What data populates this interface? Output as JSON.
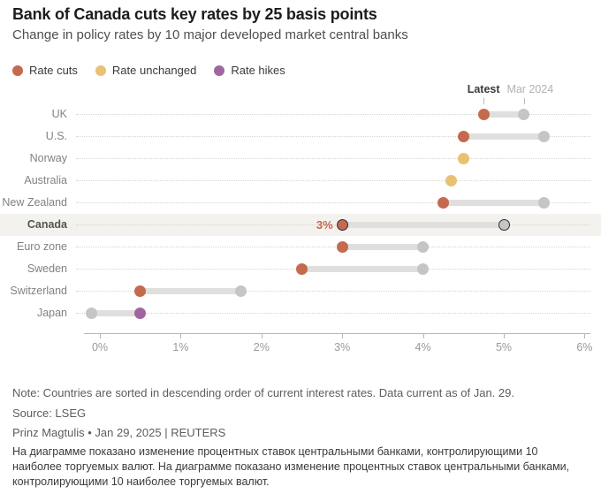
{
  "header": {
    "title": "Bank of Canada cuts key rates by 25 basis points",
    "subtitle": "Change in policy rates by 10 major developed market central banks"
  },
  "legend": {
    "items": [
      {
        "label": "Rate cuts",
        "key": "cut"
      },
      {
        "label": "Rate unchanged",
        "key": "unchanged"
      },
      {
        "label": "Rate hikes",
        "key": "hike"
      }
    ]
  },
  "colors": {
    "cut": "#c46a4e",
    "unchanged": "#e8c272",
    "hike": "#a0679e",
    "previous": "#c7c5c3",
    "bar": "#e1dfdd",
    "highlight_band": "#f4f2ef",
    "accent_label": "#c4694e"
  },
  "chart_data": {
    "type": "scatter",
    "variant": "dumbbell",
    "title": "Bank of Canada cuts key rates by 25 basis points",
    "subtitle": "Change in policy rates by 10 major developed market central banks",
    "unit": "%",
    "categories": [
      "UK",
      "U.S.",
      "Norway",
      "Australia",
      "New Zealand",
      "Canada",
      "Euro zone",
      "Sweden",
      "Switzerland",
      "Japan"
    ],
    "series": [
      {
        "name": "Latest",
        "values": [
          4.75,
          4.5,
          4.5,
          4.35,
          4.25,
          3.0,
          3.0,
          2.5,
          0.5,
          0.5
        ]
      },
      {
        "name": "Mar 2024",
        "values": [
          5.25,
          5.5,
          4.5,
          4.35,
          5.5,
          5.0,
          4.0,
          4.0,
          1.75,
          -0.1
        ]
      }
    ],
    "status": [
      "cut",
      "cut",
      "unchanged",
      "unchanged",
      "cut",
      "cut",
      "cut",
      "cut",
      "cut",
      "hike"
    ],
    "highlight": {
      "category": "Canada",
      "value_label": "3%"
    },
    "column_headers": {
      "latest": "Latest",
      "previous": "Mar 2024",
      "latest_x": 4.75,
      "previous_x": 5.25
    },
    "x_ticks": [
      "0%",
      "1%",
      "2%",
      "3%",
      "4%",
      "5%",
      "6%"
    ],
    "xlim": [
      0,
      6
    ],
    "grid": "dotted row leader lines",
    "legend_position": "top-left",
    "sort": "descending by latest rate"
  },
  "footer": {
    "note": "Note: Countries are sorted in descending order of current interest rates. Data current as of Jan. 29.",
    "source": "Source: LSEG",
    "byline": "Prinz Magtulis • Jan 29, 2025 | REUTERS",
    "caption": "На диаграмме показано изменение процентных ставок центральными банками, контролирующими 10 наиболее торгуемых валют. На диаграмме показано изменение процентных ставок центральными банками, контролирующими 10 наиболее торгуемых валют."
  }
}
